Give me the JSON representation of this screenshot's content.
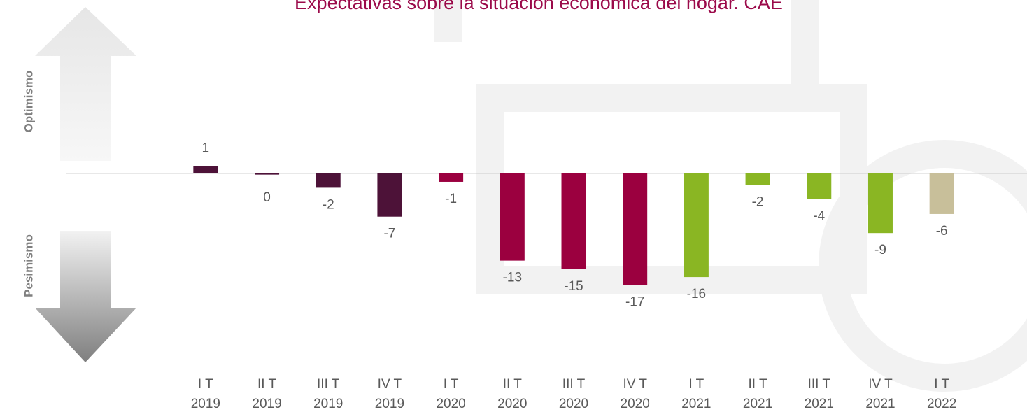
{
  "chart_data": {
    "type": "bar",
    "title": "Expectativas sobre la situación económica del hogar. CAE",
    "side_labels": [
      "Optimismo",
      "Pesimismo"
    ],
    "categories": [
      "I T\n2019",
      "II T\n2019",
      "III T\n2019",
      "IV T\n2019",
      "I T\n2020",
      "II T\n2020",
      "III T\n2020",
      "IV T\n2020",
      "I T\n2021",
      "II T\n2021",
      "III T\n2021",
      "IV T\n2021",
      "I T\n2022"
    ],
    "values": [
      1.1,
      -0.2,
      -2.2,
      -6.6,
      -1.3,
      -13.3,
      -14.6,
      -17.0,
      -15.8,
      -1.8,
      -3.9,
      -9.1,
      -6.2
    ],
    "value_labels": [
      "1",
      "0",
      "-2",
      "-7",
      "-1",
      "-13",
      "-15",
      "-17",
      "-16",
      "-2",
      "-4",
      "-9",
      "-6"
    ],
    "colors": [
      "#4d1238",
      "#4d1238",
      "#4d1238",
      "#4d1238",
      "#9b003f",
      "#9b003f",
      "#9b003f",
      "#9b003f",
      "#8ab623",
      "#8ab623",
      "#8ab623",
      "#8ab623",
      "#c8bf9a"
    ],
    "ylim": [
      -29,
      20
    ]
  }
}
